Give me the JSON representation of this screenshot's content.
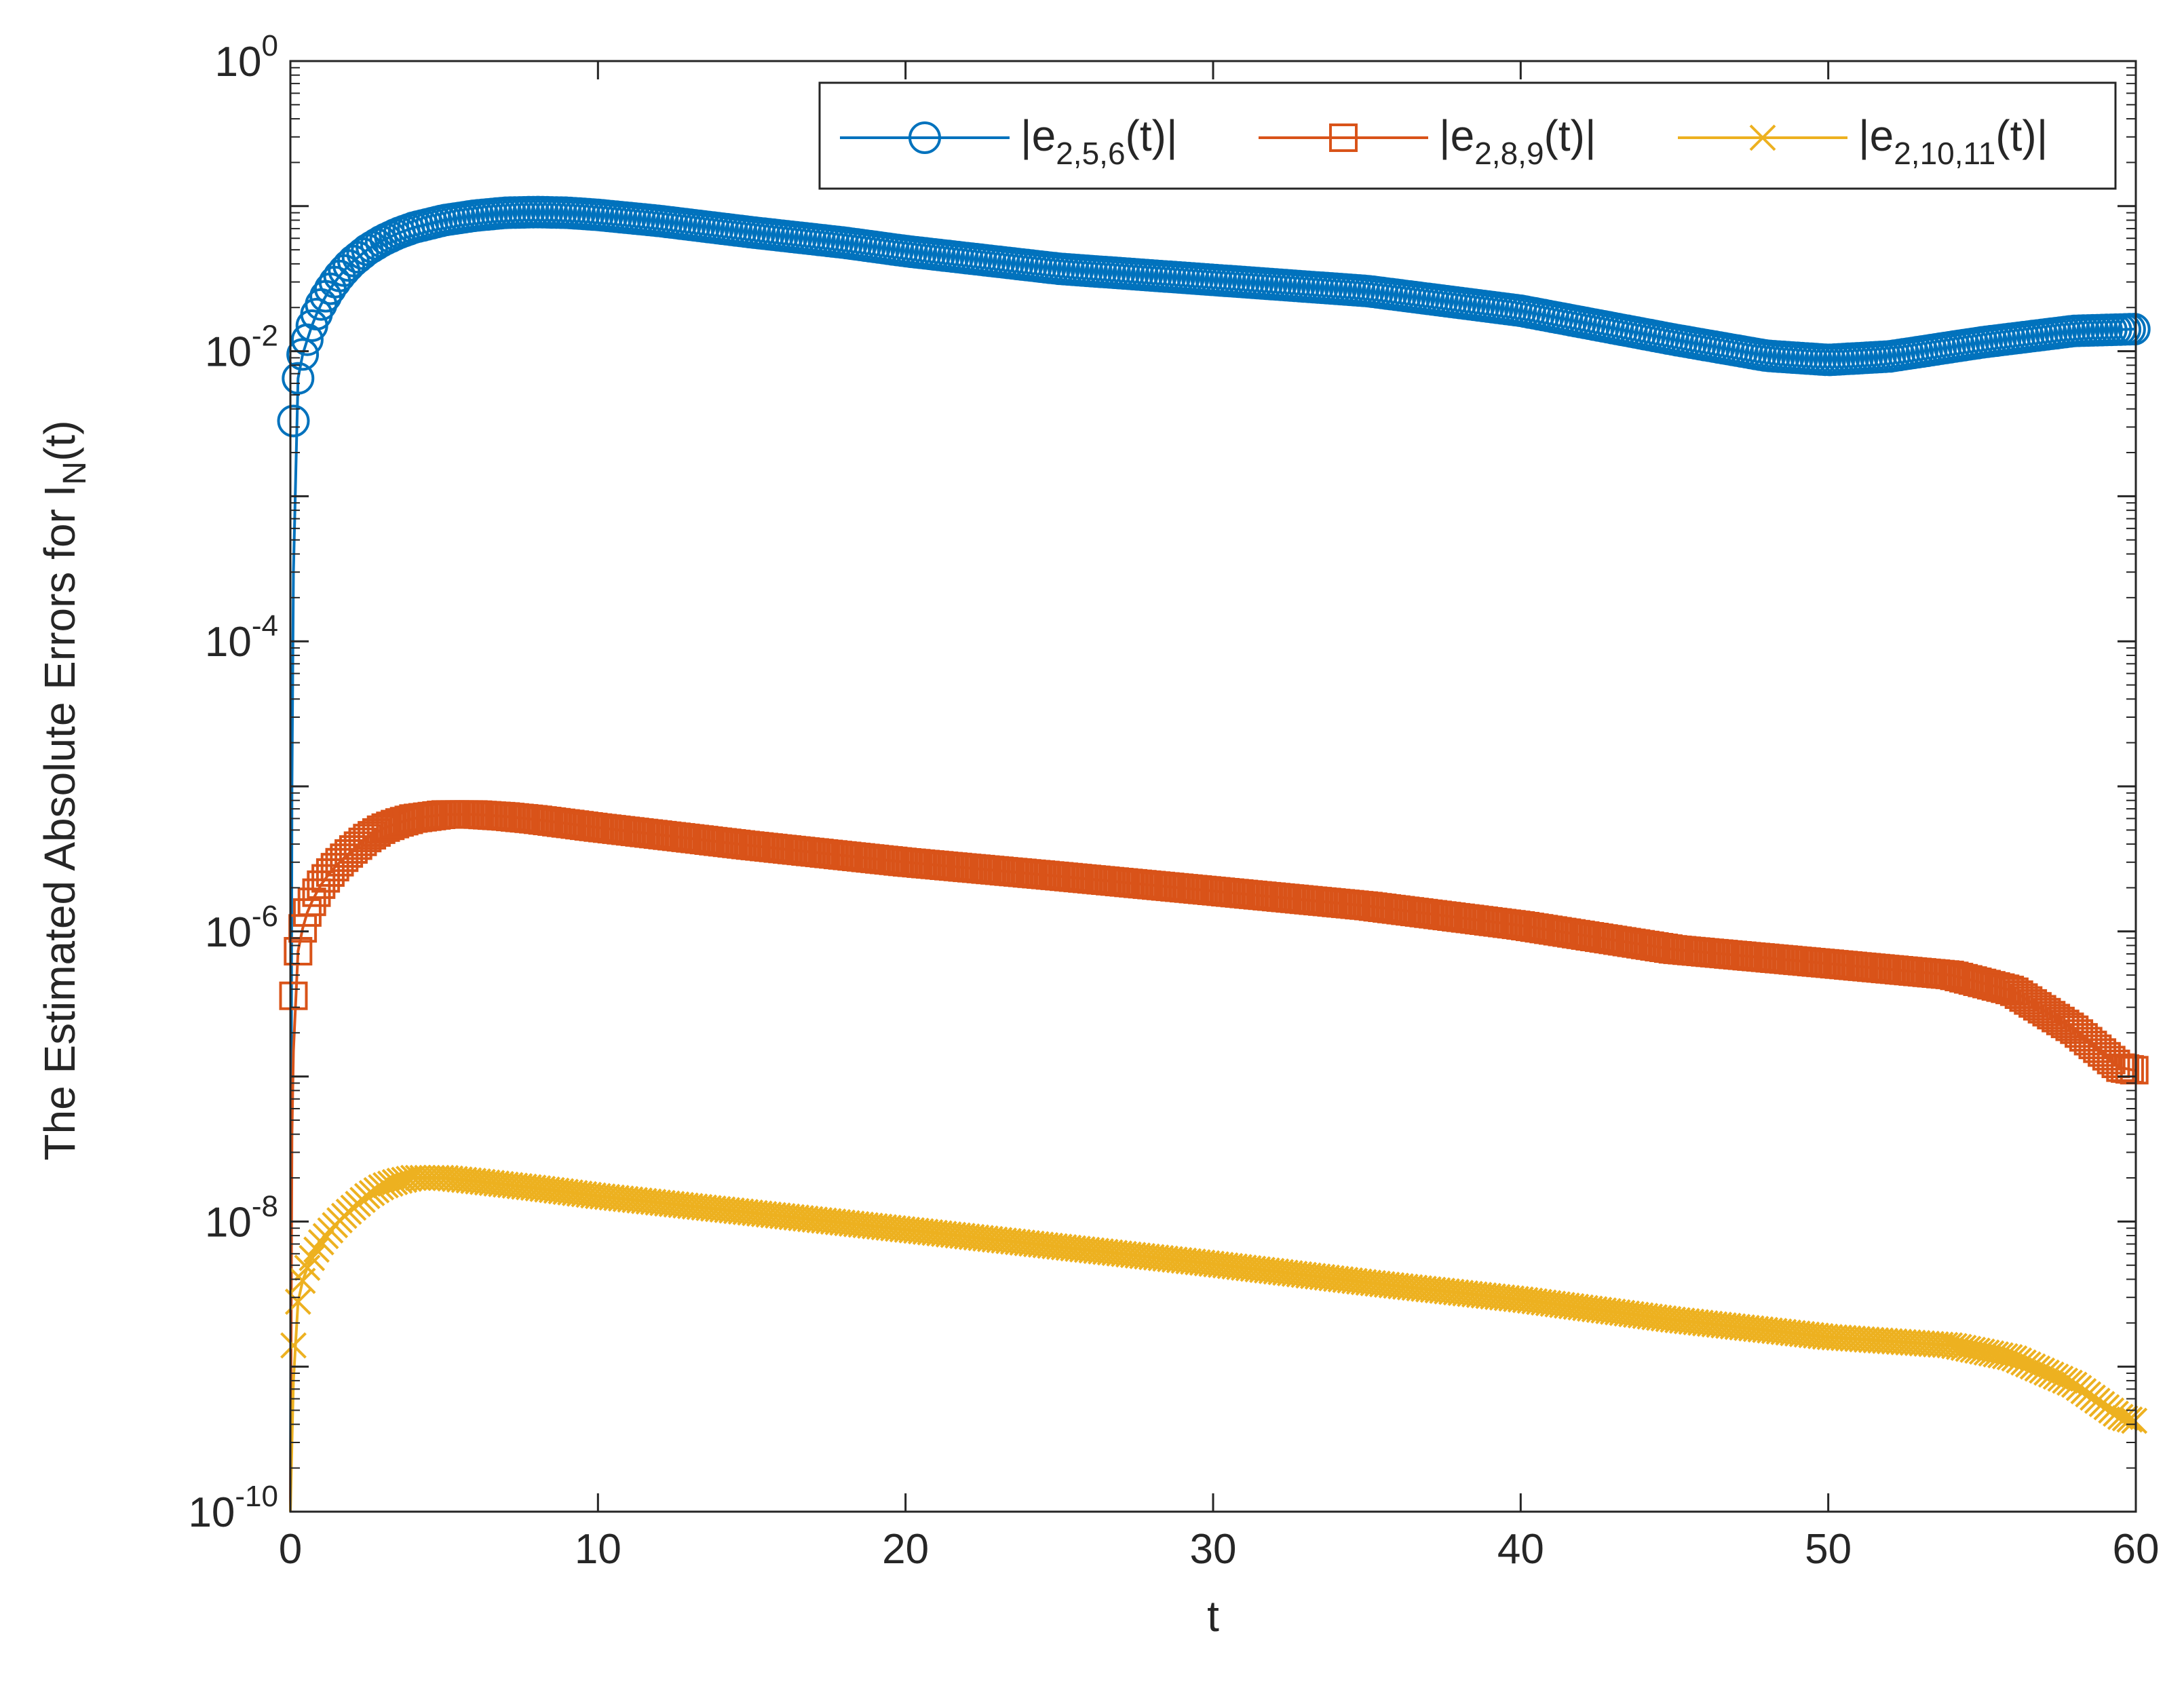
{
  "chart_data": {
    "type": "line",
    "title": "",
    "xlabel": "t",
    "ylabel_main": "The Estimated Absolute Errors for I",
    "ylabel_sub": "N",
    "ylabel_tail": "(t)",
    "xlim": [
      0,
      60
    ],
    "ylim": [
      1e-10,
      1
    ],
    "yscale": "log",
    "grid": false,
    "legend_position": "top-right",
    "x_ticks": [
      0,
      10,
      20,
      30,
      40,
      50,
      60
    ],
    "x_tick_labels": [
      "0",
      "10",
      "20",
      "30",
      "40",
      "50",
      "60"
    ],
    "y_ticks": [
      {
        "exp": 0,
        "base": "10",
        "sup": "0"
      },
      {
        "exp": -2,
        "base": "10",
        "sup": "-2"
      },
      {
        "exp": -4,
        "base": "10",
        "sup": "-4"
      },
      {
        "exp": -6,
        "base": "10",
        "sup": "-6"
      },
      {
        "exp": -8,
        "base": "10",
        "sup": "-8"
      },
      {
        "exp": -10,
        "base": "10",
        "sup": "-10"
      }
    ],
    "series": [
      {
        "name": "|e_{2,5,6}(t)|",
        "legend_pre": "|e",
        "legend_sub": "2,5,6",
        "legend_post": "(t)|",
        "color": "#0072BD",
        "marker": "circle",
        "line_start": [
          [
            0.0,
            1e-10
          ],
          [
            0.05,
            1e-05
          ],
          [
            0.1,
            0.0003
          ]
        ],
        "points": [
          [
            0.1,
            0.0033
          ],
          [
            0.25,
            0.0065
          ],
          [
            0.4,
            0.0095
          ],
          [
            0.55,
            0.012
          ],
          [
            0.7,
            0.015
          ],
          [
            0.85,
            0.018
          ],
          [
            1.0,
            0.021
          ],
          [
            1.2,
            0.025
          ],
          [
            1.4,
            0.029
          ],
          [
            1.6,
            0.033
          ],
          [
            1.8,
            0.037
          ],
          [
            2.0,
            0.041
          ],
          [
            2.5,
            0.05
          ],
          [
            3.0,
            0.058
          ],
          [
            3.5,
            0.065
          ],
          [
            4.0,
            0.071
          ],
          [
            5.0,
            0.08
          ],
          [
            6.0,
            0.086
          ],
          [
            7.0,
            0.09
          ],
          [
            8.0,
            0.091
          ],
          [
            9.0,
            0.09
          ],
          [
            10.0,
            0.087
          ],
          [
            12.0,
            0.079
          ],
          [
            15.0,
            0.066
          ],
          [
            18.0,
            0.056
          ],
          [
            20.0,
            0.049
          ],
          [
            25.0,
            0.037
          ],
          [
            30.0,
            0.031
          ],
          [
            35.0,
            0.026
          ],
          [
            40.0,
            0.019
          ],
          [
            45.0,
            0.012
          ],
          [
            48.0,
            0.0093
          ],
          [
            50.0,
            0.0087
          ],
          [
            52.0,
            0.0092
          ],
          [
            55.0,
            0.0115
          ],
          [
            58.0,
            0.0138
          ],
          [
            60.0,
            0.0142
          ]
        ]
      },
      {
        "name": "|e_{2,8,9}(t)|",
        "legend_pre": "|e",
        "legend_sub": "2,8,9",
        "legend_post": "(t)|",
        "color": "#D95319",
        "marker": "square",
        "line_start": [
          [
            0.0,
            1e-10
          ],
          [
            0.05,
            4e-08
          ],
          [
            0.1,
            1.5e-07
          ]
        ],
        "points": [
          [
            0.1,
            3.6e-07
          ],
          [
            0.25,
            7.3e-07
          ],
          [
            0.4,
            1.05e-06
          ],
          [
            0.55,
            1.35e-06
          ],
          [
            0.7,
            1.6e-06
          ],
          [
            0.85,
            1.85e-06
          ],
          [
            1.0,
            2.1e-06
          ],
          [
            1.2,
            2.4e-06
          ],
          [
            1.4,
            2.7e-06
          ],
          [
            1.6,
            3e-06
          ],
          [
            1.8,
            3.3e-06
          ],
          [
            2.0,
            3.6e-06
          ],
          [
            2.5,
            4.4e-06
          ],
          [
            3.0,
            5.1e-06
          ],
          [
            3.5,
            5.6e-06
          ],
          [
            4.0,
            6e-06
          ],
          [
            5.0,
            6.4e-06
          ],
          [
            6.0,
            6.4e-06
          ],
          [
            7.0,
            6.2e-06
          ],
          [
            8.0,
            5.9e-06
          ],
          [
            10.0,
            5.2e-06
          ],
          [
            15.0,
            3.9e-06
          ],
          [
            20.0,
            3e-06
          ],
          [
            25.0,
            2.4e-06
          ],
          [
            30.0,
            1.9e-06
          ],
          [
            35.0,
            1.5e-06
          ],
          [
            40.0,
            1.1e-06
          ],
          [
            45.0,
            7.5e-07
          ],
          [
            50.0,
            6e-07
          ],
          [
            54.0,
            5e-07
          ],
          [
            56.0,
            3.9e-07
          ],
          [
            58.0,
            2.1e-07
          ],
          [
            59.5,
            1.15e-07
          ],
          [
            60.0,
            1.1e-07
          ]
        ]
      },
      {
        "name": "|e_{2,10,11}(t)|",
        "legend_pre": "|e",
        "legend_sub": "2,10,11",
        "legend_post": "(t)|",
        "color": "#EDB120",
        "marker": "x",
        "line_start": [
          [
            0.0,
            1e-10
          ],
          [
            0.05,
            3e-10
          ],
          [
            0.1,
            8e-10
          ]
        ],
        "points": [
          [
            0.1,
            1.4e-09
          ],
          [
            0.25,
            2.8e-09
          ],
          [
            0.4,
            3.9e-09
          ],
          [
            0.55,
            4.8e-09
          ],
          [
            0.7,
            5.6e-09
          ],
          [
            0.85,
            6.4e-09
          ],
          [
            1.0,
            7.2e-09
          ],
          [
            1.2,
            8.2e-09
          ],
          [
            1.4,
            9.2e-09
          ],
          [
            1.6,
            1.02e-08
          ],
          [
            1.8,
            1.12e-08
          ],
          [
            2.0,
            1.22e-08
          ],
          [
            2.5,
            1.5e-08
          ],
          [
            3.0,
            1.75e-08
          ],
          [
            3.5,
            1.9e-08
          ],
          [
            4.0,
            2e-08
          ],
          [
            5.0,
            2e-08
          ],
          [
            6.0,
            1.9e-08
          ],
          [
            8.0,
            1.7e-08
          ],
          [
            10.0,
            1.5e-08
          ],
          [
            15.0,
            1.15e-08
          ],
          [
            20.0,
            8.8e-09
          ],
          [
            25.0,
            6.7e-09
          ],
          [
            30.0,
            5.1e-09
          ],
          [
            35.0,
            3.8e-09
          ],
          [
            40.0,
            2.9e-09
          ],
          [
            45.0,
            2.1e-09
          ],
          [
            50.0,
            1.6e-09
          ],
          [
            54.0,
            1.4e-09
          ],
          [
            56.0,
            1.15e-09
          ],
          [
            58.0,
            7.5e-10
          ],
          [
            59.5,
            4.5e-10
          ],
          [
            60.0,
            4.2e-10
          ]
        ]
      }
    ]
  }
}
